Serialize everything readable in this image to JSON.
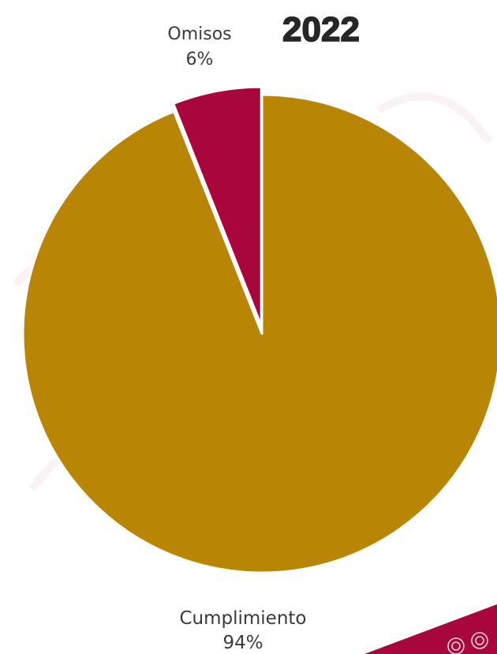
{
  "chart_data": {
    "type": "pie",
    "title": "2022",
    "slices": [
      {
        "name": "Omisos",
        "value": 6,
        "value_label": "6%",
        "color": "#A8073E"
      },
      {
        "name": "Cumplimiento",
        "value": 94,
        "value_label": "94%",
        "color": "#B98504"
      }
    ],
    "background": "#ffffff",
    "corner_band_color": "#A8073E"
  }
}
